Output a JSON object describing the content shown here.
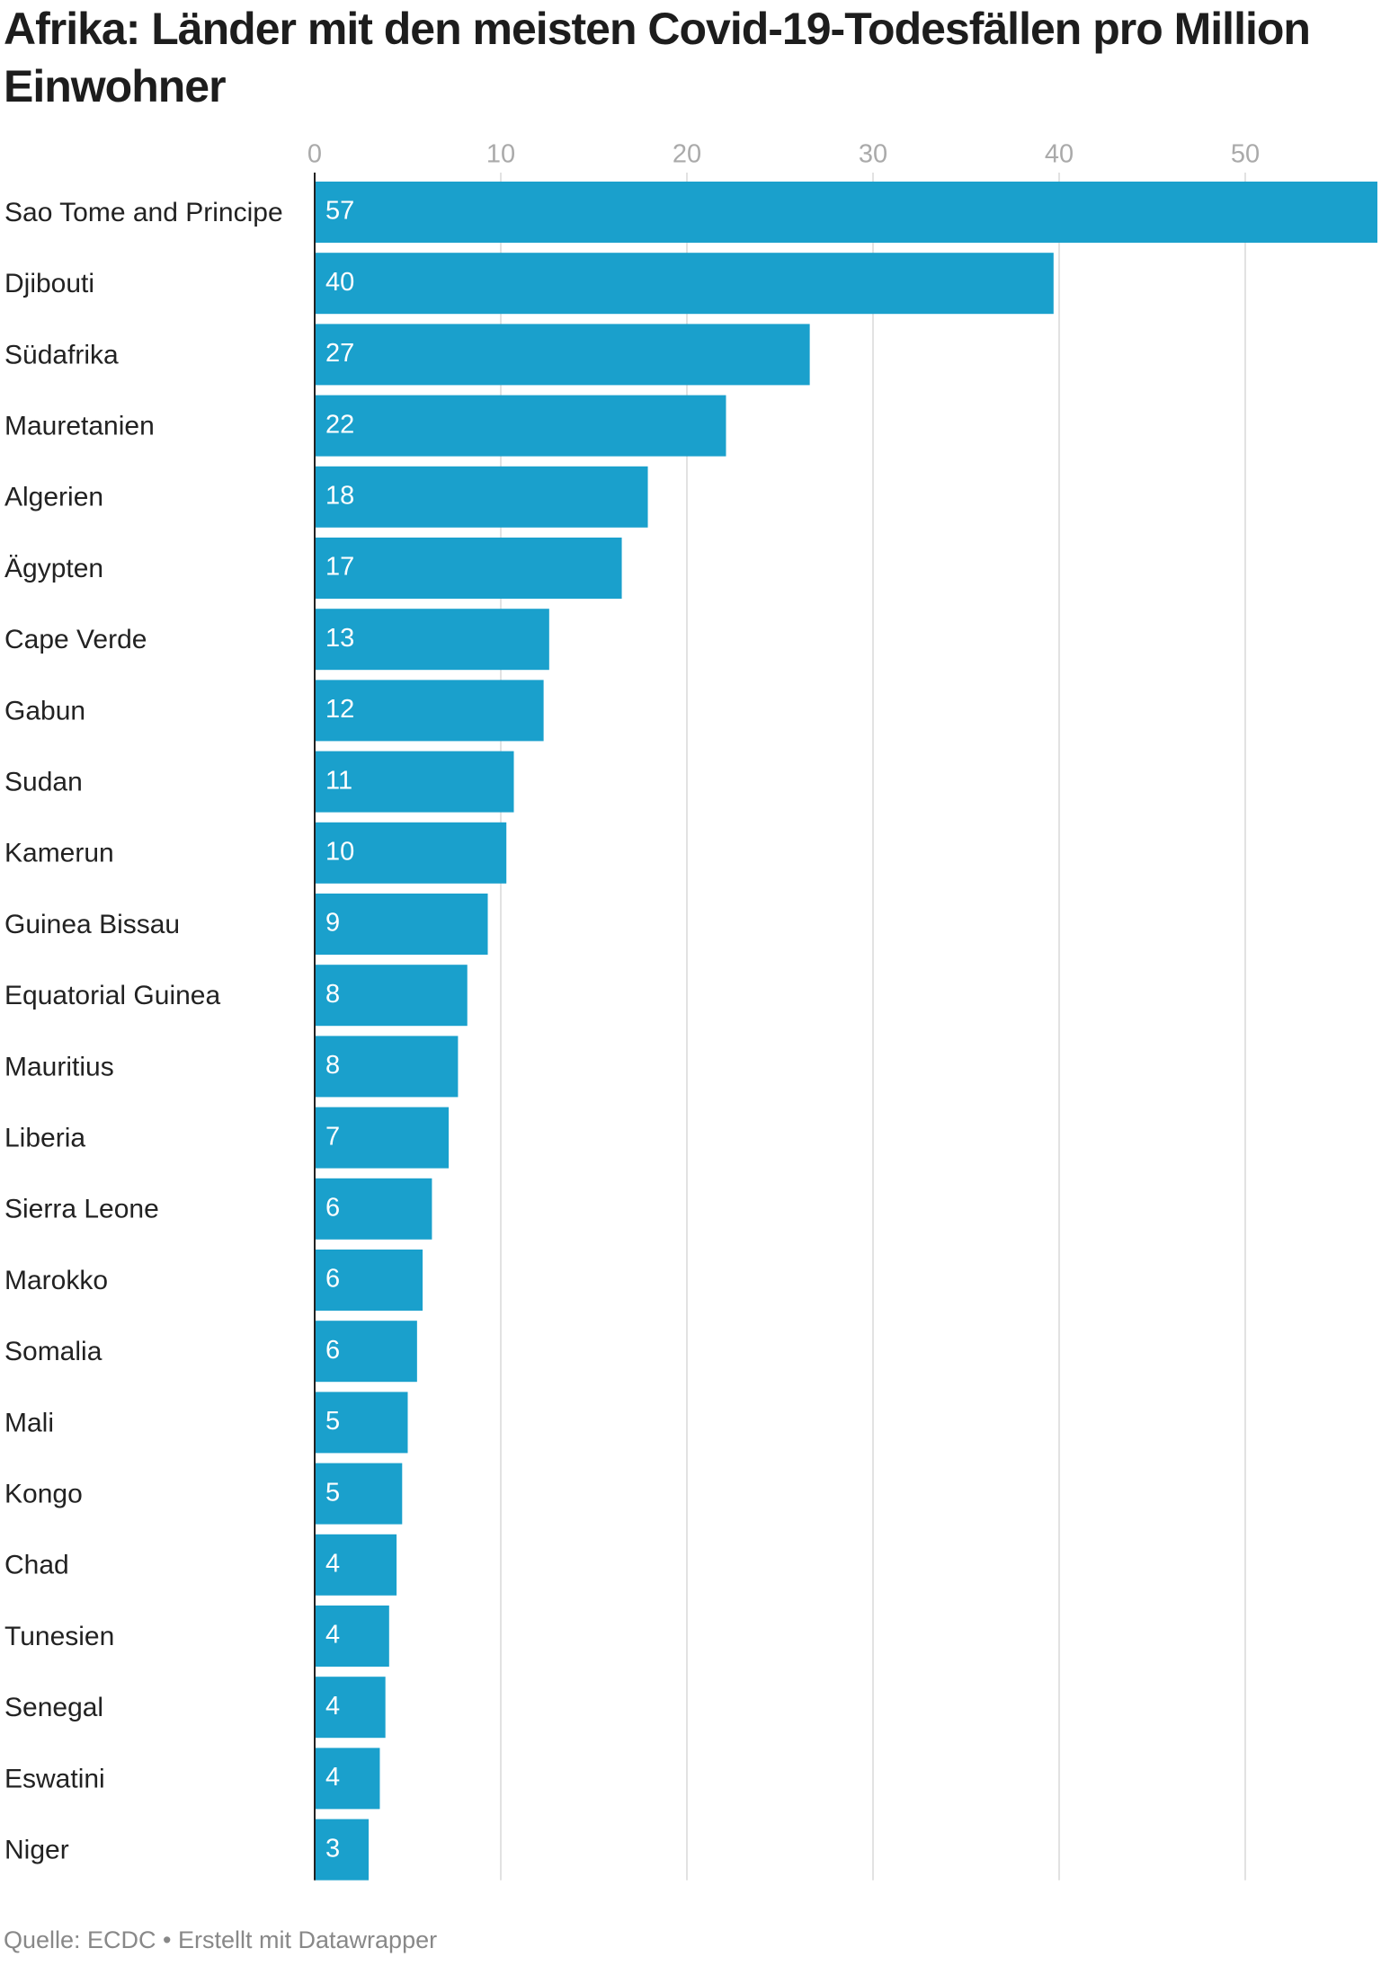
{
  "chart_data": {
    "type": "bar",
    "orientation": "horizontal",
    "title": "Afrika: Länder mit den meisten Covid-19-Todesfällen pro Million Einwohner",
    "source": "Quelle: ECDC • Erstellt mit Datawrapper",
    "categories": [
      "Sao Tome and Principe",
      "Djibouti",
      "Südafrika",
      "Mauretanien",
      "Algerien",
      "Ägypten",
      "Cape Verde",
      "Gabun",
      "Sudan",
      "Kamerun",
      "Guinea Bissau",
      "Equatorial Guinea",
      "Mauritius",
      "Liberia",
      "Sierra Leone",
      "Marokko",
      "Somalia",
      "Mali",
      "Kongo",
      "Chad",
      "Tunesien",
      "Senegal",
      "Eswatini",
      "Niger"
    ],
    "values": [
      57.1,
      39.7,
      26.6,
      22.1,
      17.9,
      16.5,
      12.6,
      12.3,
      10.7,
      10.3,
      9.3,
      8.2,
      7.7,
      7.2,
      6.3,
      5.8,
      5.5,
      5.0,
      4.7,
      4.4,
      4.0,
      3.8,
      3.5,
      2.9
    ],
    "value_labels": [
      "57",
      "40",
      "27",
      "22",
      "18",
      "17",
      "13",
      "12",
      "11",
      "10",
      "9",
      "8",
      "8",
      "7",
      "6",
      "6",
      "6",
      "5",
      "5",
      "4",
      "4",
      "4",
      "4",
      "3"
    ],
    "color": "#1aa0cc",
    "xlim": [
      0,
      57.1
    ],
    "xticks": [
      0,
      10,
      20,
      30,
      40,
      50
    ],
    "grid": true
  }
}
